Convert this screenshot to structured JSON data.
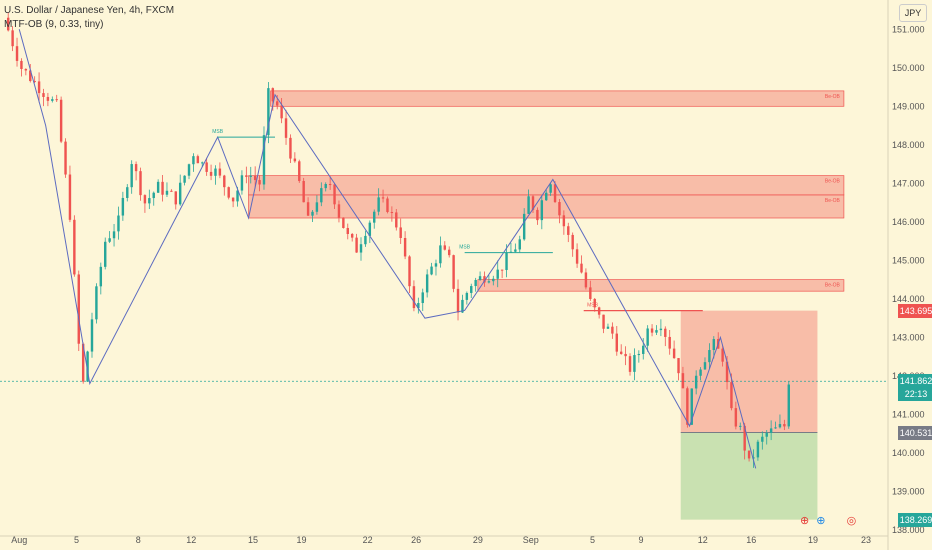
{
  "legend": {
    "title": "U.S. Dollar / Japanese Yen, 4h, FXCM",
    "indicator": "MTF-OB (9, 0.33, tiny)"
  },
  "currency_button": "JPY",
  "chart_data": {
    "type": "candlestick",
    "title": "U.S. Dollar / Japanese Yen, 4h, FXCM",
    "ylim": [
      138.0,
      151.5
    ],
    "y_ticks": [
      138.0,
      139.0,
      140.0,
      141.0,
      142.0,
      143.0,
      144.0,
      145.0,
      146.0,
      147.0,
      148.0,
      149.0,
      150.0,
      151.0
    ],
    "x_ticks": [
      {
        "label": "Aug",
        "idx": 3
      },
      {
        "label": "5",
        "idx": 16
      },
      {
        "label": "8",
        "idx": 30
      },
      {
        "label": "12",
        "idx": 42
      },
      {
        "label": "15",
        "idx": 56
      },
      {
        "label": "19",
        "idx": 67
      },
      {
        "label": "22",
        "idx": 82
      },
      {
        "label": "26",
        "idx": 93
      },
      {
        "label": "29",
        "idx": 107
      },
      {
        "label": "Sep",
        "idx": 119
      },
      {
        "label": "5",
        "idx": 133
      },
      {
        "label": "9",
        "idx": 144
      },
      {
        "label": "12",
        "idx": 158
      },
      {
        "label": "16",
        "idx": 169
      },
      {
        "label": "19",
        "idx": 183
      },
      {
        "label": "23",
        "idx": 195
      }
    ],
    "keypoints": [
      [
        0,
        151.3
      ],
      [
        4,
        150.0
      ],
      [
        8,
        149.5
      ],
      [
        12,
        149.0
      ],
      [
        15,
        146.2
      ],
      [
        17,
        142.8
      ],
      [
        18,
        141.8
      ],
      [
        20,
        143.5
      ],
      [
        23,
        145.5
      ],
      [
        26,
        146.0
      ],
      [
        29,
        147.6
      ],
      [
        32,
        146.5
      ],
      [
        35,
        146.9
      ],
      [
        39,
        146.6
      ],
      [
        43,
        147.8
      ],
      [
        45,
        147.5
      ],
      [
        48,
        147.3
      ],
      [
        52,
        146.6
      ],
      [
        55,
        147.3
      ],
      [
        58,
        147.0
      ],
      [
        60,
        149.3
      ],
      [
        62,
        149.0
      ],
      [
        64,
        148.2
      ],
      [
        67,
        147.0
      ],
      [
        69,
        146.0
      ],
      [
        71,
        146.6
      ],
      [
        74,
        147.0
      ],
      [
        76,
        146.2
      ],
      [
        78,
        145.6
      ],
      [
        80,
        145.3
      ],
      [
        82,
        145.8
      ],
      [
        85,
        146.5
      ],
      [
        87,
        146.4
      ],
      [
        90,
        145.7
      ],
      [
        93,
        143.6
      ],
      [
        95,
        144.3
      ],
      [
        97,
        144.8
      ],
      [
        99,
        145.3
      ],
      [
        101,
        145.0
      ],
      [
        103,
        143.7
      ],
      [
        106,
        144.4
      ],
      [
        109,
        144.6
      ],
      [
        112,
        144.7
      ],
      [
        115,
        145.2
      ],
      [
        117,
        145.5
      ],
      [
        119,
        146.6
      ],
      [
        121,
        146.2
      ],
      [
        123,
        146.9
      ],
      [
        124,
        147.1
      ],
      [
        126,
        146.2
      ],
      [
        129,
        145.3
      ],
      [
        131,
        144.7
      ],
      [
        133,
        143.9
      ],
      [
        136,
        143.3
      ],
      [
        138,
        143.1
      ],
      [
        140,
        142.5
      ],
      [
        142,
        142.2
      ],
      [
        144,
        142.6
      ],
      [
        146,
        143.2
      ],
      [
        149,
        143.4
      ],
      [
        151,
        142.8
      ],
      [
        153,
        142.2
      ],
      [
        155,
        140.9
      ],
      [
        157,
        142.1
      ],
      [
        159,
        142.5
      ],
      [
        161,
        142.8
      ],
      [
        163,
        142.5
      ],
      [
        165,
        141.0
      ],
      [
        167,
        140.6
      ],
      [
        169,
        139.7
      ],
      [
        171,
        140.2
      ],
      [
        173,
        140.5
      ],
      [
        175,
        140.6
      ],
      [
        177,
        140.7
      ],
      [
        178,
        141.9
      ]
    ],
    "order_blocks": [
      {
        "label": "Be-OB",
        "top": 149.4,
        "bottom": 149.0,
        "x_start_idx": 60,
        "x_end_idx": 190
      },
      {
        "label": "Be-OB",
        "top": 147.2,
        "bottom": 146.7,
        "x_start_idx": 55,
        "x_end_idx": 190
      },
      {
        "label": "Be-OB",
        "top": 146.7,
        "bottom": 146.1,
        "x_start_idx": 55,
        "x_end_idx": 190
      },
      {
        "label": "Be-OB",
        "top": 144.5,
        "bottom": 144.2,
        "x_start_idx": 107,
        "x_end_idx": 190
      }
    ],
    "mss_labels": [
      {
        "label": "MSB",
        "price": 148.2,
        "idx": 48,
        "color": "#26a69a"
      },
      {
        "label": "MSB",
        "price": 145.2,
        "idx": 104,
        "color": "#26a69a"
      },
      {
        "label": "MSB",
        "price": 143.7,
        "idx": 133,
        "color": "#ef5350"
      }
    ],
    "zigzag": [
      [
        3,
        151.0
      ],
      [
        9,
        148.5
      ],
      [
        19,
        141.8
      ],
      [
        48,
        148.2
      ],
      [
        55,
        146.1
      ],
      [
        61,
        149.3
      ],
      [
        95,
        143.5
      ],
      [
        104,
        143.7
      ],
      [
        124,
        147.1
      ],
      [
        155,
        140.7
      ],
      [
        162,
        143.0
      ],
      [
        170,
        139.6
      ]
    ],
    "position": {
      "entry": 140.531,
      "stop": 143.695,
      "target": 138.269,
      "x_start_idx": 153,
      "x_end_idx": 184
    },
    "current_price": 141.862,
    "countdown": "22:13",
    "price_tags": [
      {
        "value": "143.695",
        "color": "#ef5350"
      },
      {
        "value": "141.862",
        "color": "#26a69a"
      },
      {
        "value": "140.531",
        "color": "#787b86"
      },
      {
        "value": "138.269",
        "color": "#26a69a"
      }
    ]
  }
}
